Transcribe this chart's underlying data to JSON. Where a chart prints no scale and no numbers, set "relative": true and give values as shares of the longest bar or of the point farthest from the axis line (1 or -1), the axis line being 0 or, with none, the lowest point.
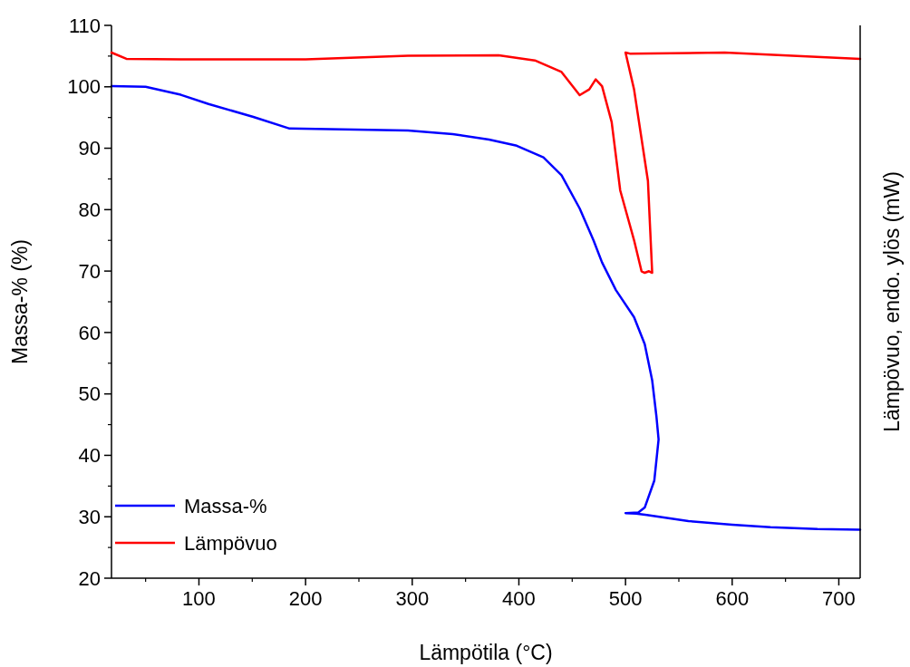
{
  "chart_data": [
    {
      "type": "line",
      "ylabel": "Massa-% (%)",
      "tick_labels": "y",
      "xlim": [
        18,
        720
      ],
      "ylim": [
        20,
        110
      ],
      "yticks": [
        20,
        30,
        40,
        50,
        60,
        70,
        80,
        90,
        100,
        110
      ],
      "legend": "bottom left",
      "series": [
        {
          "name": "Massa-%",
          "color": "#0000ff",
          "x": [
            18,
            50,
            83,
            109,
            151,
            185,
            296,
            338,
            372,
            398,
            423,
            440,
            457,
            470,
            478,
            491,
            508,
            518,
            525,
            529,
            531,
            527,
            518,
            512,
            500,
            510,
            520,
            559,
            600,
            636,
            680,
            720
          ],
          "values": [
            100.1,
            100,
            98.7,
            97.2,
            95.1,
            93.2,
            92.9,
            92.3,
            91.4,
            90.4,
            88.5,
            85.6,
            80.2,
            75,
            71.4,
            66.9,
            62.5,
            58.1,
            52.2,
            46.3,
            42.6,
            35.9,
            31.5,
            30.7,
            30.6,
            30.5,
            30.3,
            29.3,
            28.7,
            28.3,
            28,
            27.9
          ]
        }
      ]
    },
    {
      "type": "line",
      "relative": true,
      "ylabel": "Lämpövuo, endo. ylös (mW)",
      "tick_labels": "x",
      "xlabel": "Lämpötila (°C)",
      "xlim": [
        18,
        720
      ],
      "xticks": [
        100,
        200,
        300,
        400,
        500,
        600,
        700
      ],
      "legend": "bottom left",
      "series": [
        {
          "name": "Lämpövuo",
          "color": "#ff0000",
          "x": [
            18,
            32,
            83,
            200,
            296,
            381,
            415,
            440,
            457,
            466,
            472,
            478,
            487,
            495,
            508,
            515,
            518,
            522,
            525,
            521,
            508,
            500,
            504,
            593,
            720
          ],
          "values": [
            1,
            0.988,
            0.987,
            0.987,
            0.994,
            0.995,
            0.985,
            0.963,
            0.919,
            0.93,
            0.949,
            0.936,
            0.868,
            0.738,
            0.643,
            0.584,
            0.581,
            0.584,
            0.581,
            0.756,
            0.93,
            1,
            0.998,
            1,
            0.988
          ]
        }
      ]
    }
  ]
}
